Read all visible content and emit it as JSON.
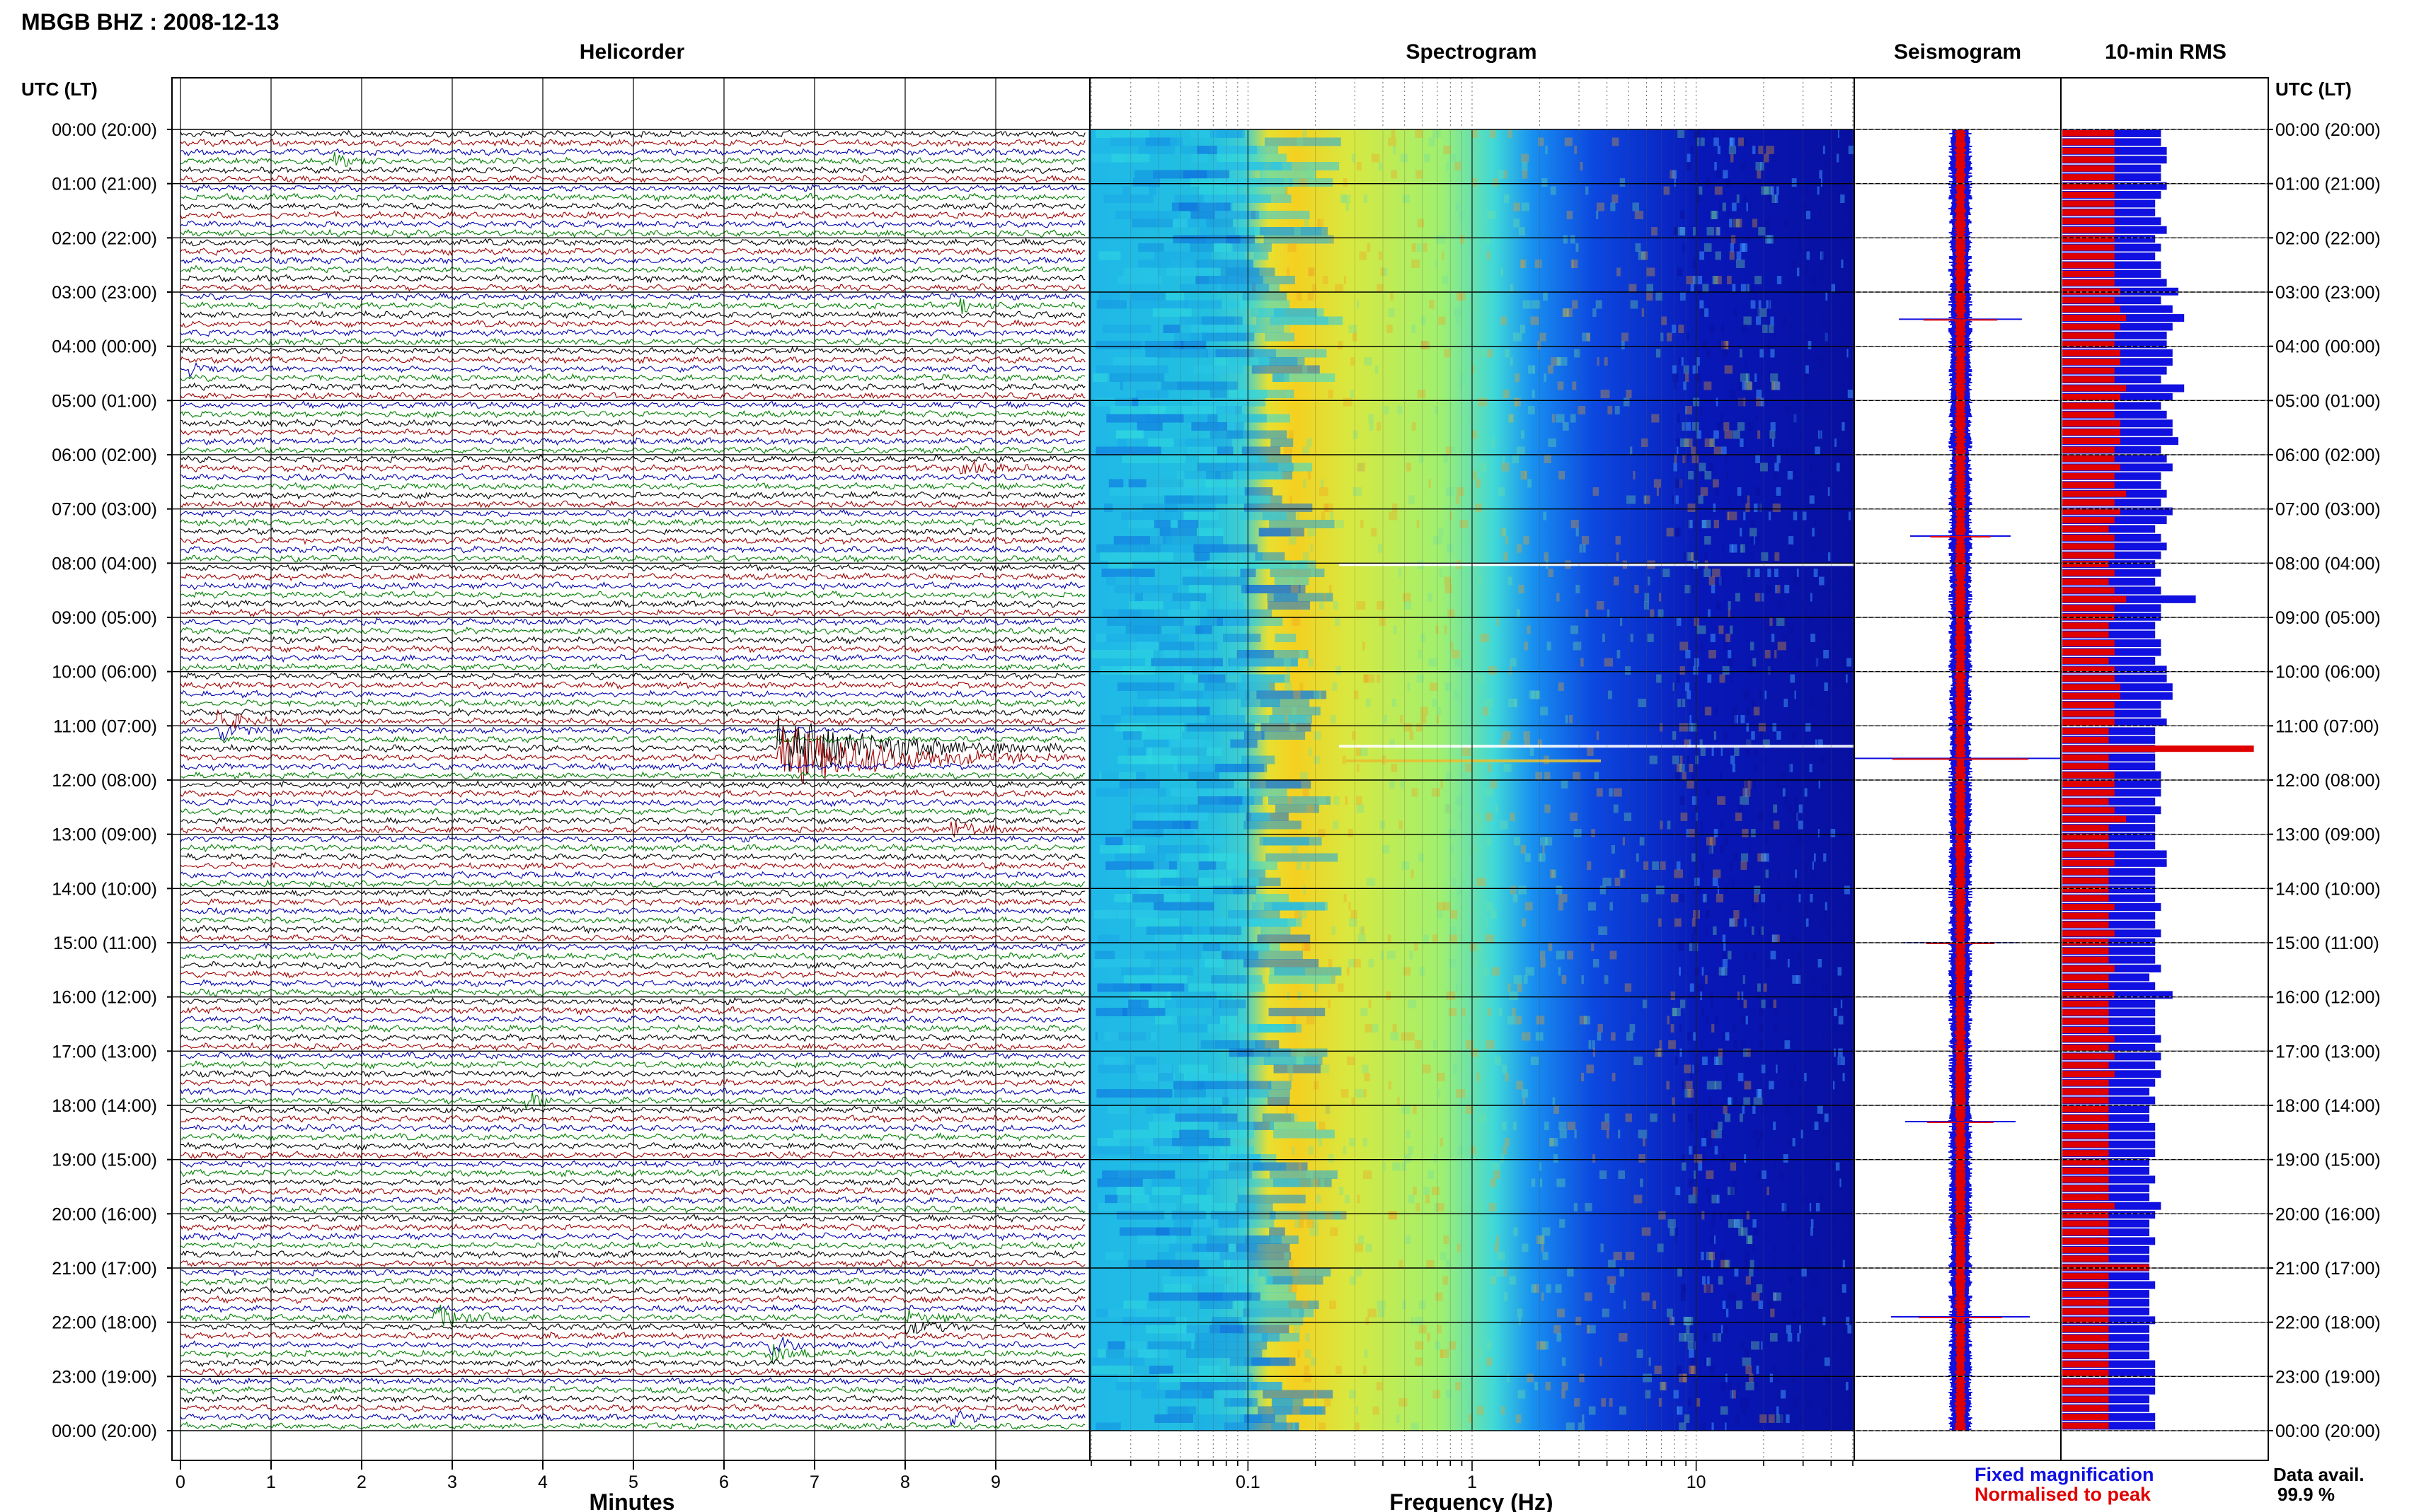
{
  "header": {
    "station_title": "MBGB BHZ : 2008-12-13"
  },
  "panels": {
    "helicorder": "Helicorder",
    "spectrogram": "Spectrogram",
    "seismogram": "Seismogram",
    "rms": "10-min RMS"
  },
  "axis_headers": {
    "left": "UTC (LT)",
    "right": "UTC (LT)"
  },
  "legend": {
    "fixed": "Fixed magnification",
    "normalised": "Normalised to peak",
    "fixed_color": "#1010e0",
    "normalised_color": "#e00000"
  },
  "data_availability": {
    "label": "Data avail.",
    "value": "99.9 %"
  },
  "chart_data": {
    "type": "helicorder",
    "time_labels": [
      "00:00 (20:00)",
      "01:00 (21:00)",
      "02:00 (22:00)",
      "03:00 (23:00)",
      "04:00 (00:00)",
      "05:00 (01:00)",
      "06:00 (02:00)",
      "07:00 (03:00)",
      "08:00 (04:00)",
      "09:00 (05:00)",
      "10:00 (06:00)",
      "11:00 (07:00)",
      "12:00 (08:00)",
      "13:00 (09:00)",
      "14:00 (10:00)",
      "15:00 (11:00)",
      "16:00 (12:00)",
      "17:00 (13:00)",
      "18:00 (14:00)",
      "19:00 (15:00)",
      "20:00 (16:00)",
      "21:00 (17:00)",
      "22:00 (18:00)",
      "23:00 (19:00)",
      "00:00 (20:00)"
    ],
    "helicorder": {
      "xlabel": "Minutes",
      "xticks": [
        0,
        1,
        2,
        3,
        4,
        5,
        6,
        7,
        8,
        9
      ],
      "xlim": [
        0,
        10
      ],
      "trace_colors": [
        "#000000",
        "#a00000",
        "#0000b0",
        "#008000"
      ],
      "traces_per_hour": 6,
      "events": [
        {
          "hour": 0.53,
          "minute": 1.7,
          "amp": 2.5,
          "dur": 0.35,
          "color": "#a00000"
        },
        {
          "hour": 3.2,
          "minute": 8.6,
          "amp": 2.2,
          "dur": 0.5,
          "color": "#000000"
        },
        {
          "hour": 4.35,
          "minute": 0.1,
          "amp": 2.0,
          "dur": 0.6,
          "color": "#0000b0"
        },
        {
          "hour": 6.3,
          "minute": 8.6,
          "amp": 3.0,
          "dur": 0.8,
          "color": "#000000"
        },
        {
          "hour": 11.0,
          "minute": 0.4,
          "amp": 3.5,
          "dur": 0.7,
          "color": "#0000b0"
        },
        {
          "hour": 11.5,
          "minute": 6.6,
          "amp": 10.0,
          "dur": 3.2,
          "color": "#a00000"
        },
        {
          "hour": 12.85,
          "minute": 8.5,
          "amp": 3.5,
          "dur": 0.7,
          "color": "#0000b0"
        },
        {
          "hour": 17.95,
          "minute": 3.8,
          "amp": 2.8,
          "dur": 0.6,
          "color": "#a00000"
        },
        {
          "hour": 21.85,
          "minute": 2.8,
          "amp": 4.0,
          "dur": 0.8,
          "color": "#008000"
        },
        {
          "hour": 22.5,
          "minute": 6.5,
          "amp": 3.2,
          "dur": 0.7,
          "color": "#000000"
        },
        {
          "hour": 22.0,
          "minute": 8.0,
          "amp": 2.2,
          "dur": 0.8,
          "color": "#000000"
        },
        {
          "hour": 23.8,
          "minute": 8.5,
          "amp": 2.0,
          "dur": 0.6,
          "color": "#0000b0"
        }
      ]
    },
    "spectrogram": {
      "xlabel": "Frequency (Hz)",
      "scale": "log",
      "xlim": [
        0.02,
        50
      ],
      "xtick_labels": [
        "0.1",
        "1",
        "10"
      ],
      "xtick_values": [
        0.1,
        1,
        10
      ]
    },
    "seismogram": {
      "series": [
        {
          "name": "Fixed magnification",
          "color": "#1010e0"
        },
        {
          "name": "Normalised to peak",
          "color": "#e00000"
        }
      ],
      "spikes_hour": [
        3.5,
        7.5,
        11.6,
        15.0,
        18.3,
        21.9
      ]
    },
    "rms": {
      "blue_values": [
        1.7,
        1.7,
        1.8,
        1.8,
        1.7,
        1.7,
        1.8,
        1.7,
        1.6,
        1.6,
        1.7,
        1.8,
        1.6,
        1.7,
        1.6,
        1.7,
        1.7,
        1.8,
        2.0,
        1.7,
        1.9,
        2.1,
        1.9,
        1.8,
        1.8,
        1.9,
        1.9,
        1.8,
        1.7,
        2.1,
        1.9,
        1.7,
        1.8,
        1.9,
        1.9,
        2.0,
        1.7,
        1.8,
        1.9,
        1.7,
        1.7,
        1.8,
        1.7,
        1.9,
        1.8,
        1.6,
        1.7,
        1.8,
        1.7,
        1.6,
        1.7,
        1.6,
        1.7,
        2.3,
        1.7,
        1.7,
        1.6,
        1.6,
        1.7,
        1.7,
        1.6,
        1.8,
        1.8,
        1.9,
        1.9,
        1.7,
        1.7,
        1.8,
        1.6,
        1.6,
        1.6,
        1.6,
        1.6,
        1.7,
        1.7,
        1.7,
        1.6,
        1.7,
        1.6,
        1.6,
        1.6,
        1.6,
        1.8,
        1.8,
        1.6,
        1.6,
        1.6,
        1.6,
        1.7,
        1.6,
        1.6,
        1.7,
        1.6,
        1.6,
        1.6,
        1.7,
        1.5,
        1.6,
        1.9,
        1.6,
        1.6,
        1.6,
        1.6,
        1.7,
        1.6,
        1.7,
        1.6,
        1.7,
        1.6,
        1.5,
        1.6,
        1.5,
        1.5,
        1.6,
        1.6,
        1.6,
        1.6,
        1.5,
        1.5,
        1.6,
        1.5,
        1.5,
        1.7,
        1.6,
        1.5,
        1.5,
        1.6,
        1.5,
        1.5,
        1.5,
        1.5,
        1.6,
        1.5,
        1.5,
        1.5,
        1.6,
        1.5,
        1.5,
        1.5,
        1.5,
        1.6,
        1.6,
        1.6,
        1.6,
        1.5,
        1.5,
        1.6,
        1.6
      ],
      "red_values": [
        0.9,
        0.9,
        0.9,
        0.9,
        0.9,
        0.9,
        0.9,
        0.9,
        0.9,
        0.9,
        0.9,
        0.9,
        0.9,
        0.9,
        0.9,
        0.9,
        0.9,
        0.9,
        1.0,
        0.9,
        1.0,
        1.1,
        1.0,
        0.9,
        0.9,
        1.0,
        1.0,
        0.9,
        0.9,
        1.1,
        1.0,
        0.9,
        0.9,
        1.0,
        1.0,
        1.0,
        0.9,
        0.9,
        1.0,
        0.9,
        0.9,
        1.1,
        0.9,
        1.0,
        0.9,
        0.8,
        0.9,
        0.9,
        0.9,
        0.8,
        0.9,
        0.8,
        0.9,
        1.1,
        0.9,
        0.9,
        0.8,
        0.8,
        0.9,
        0.9,
        0.8,
        0.9,
        0.9,
        1.0,
        1.0,
        0.9,
        0.9,
        0.9,
        0.8,
        0.8,
        3.3,
        0.8,
        0.8,
        0.9,
        0.9,
        0.9,
        0.8,
        0.9,
        1.1,
        0.8,
        0.8,
        0.8,
        0.9,
        0.9,
        0.8,
        0.8,
        0.8,
        0.8,
        0.9,
        0.8,
        0.8,
        0.9,
        0.8,
        0.8,
        0.8,
        0.9,
        0.8,
        0.8,
        0.9,
        0.8,
        0.8,
        0.8,
        0.8,
        0.9,
        0.8,
        0.9,
        0.8,
        0.9,
        0.8,
        0.8,
        0.8,
        0.8,
        0.8,
        0.8,
        0.8,
        0.8,
        0.8,
        0.8,
        0.8,
        0.8,
        0.8,
        0.8,
        0.9,
        0.8,
        0.8,
        0.8,
        0.8,
        0.8,
        0.8,
        1.5,
        0.8,
        0.8,
        0.8,
        0.8,
        0.8,
        0.8,
        0.8,
        0.8,
        0.8,
        0.8,
        0.8,
        0.8,
        0.8,
        0.8,
        0.8,
        0.8,
        0.8,
        0.8,
        0.8
      ]
    }
  }
}
